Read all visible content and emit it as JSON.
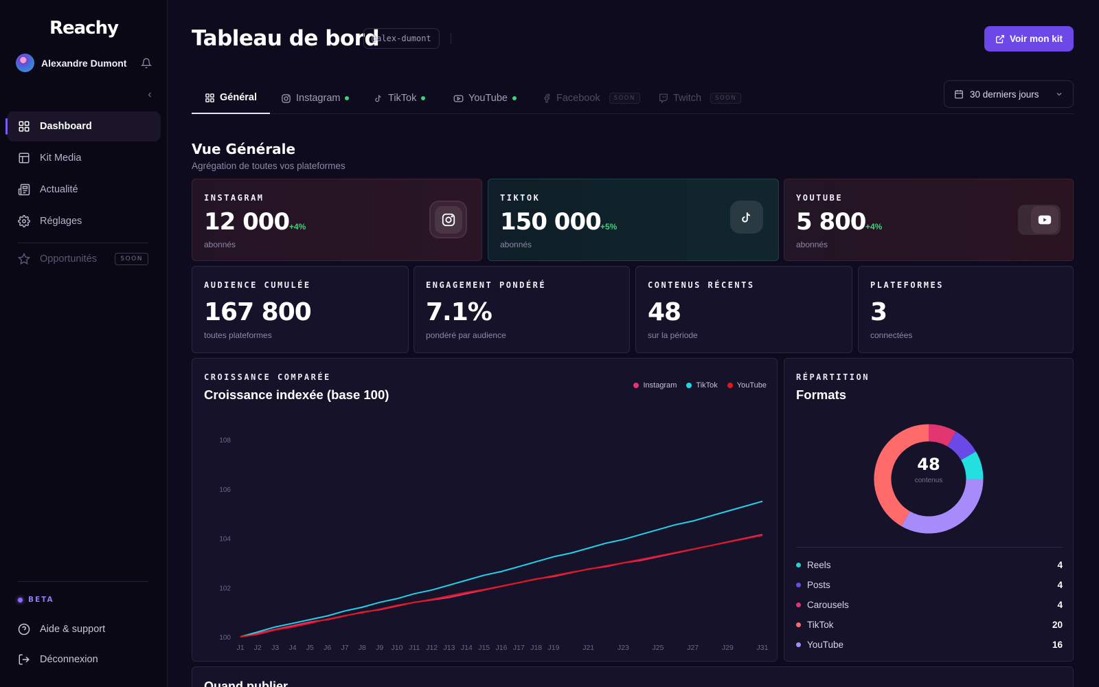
{
  "app": {
    "logo": "Reachy"
  },
  "user": {
    "name": "Alexandre Dumont"
  },
  "sidebar": {
    "items": [
      {
        "label": "Dashboard"
      },
      {
        "label": "Kit Media"
      },
      {
        "label": "Actualité"
      },
      {
        "label": "Réglages"
      }
    ],
    "opportunities": {
      "label": "Opportunités",
      "badge": "SOON"
    },
    "beta_label": "BETA",
    "help_label": "Aide & support",
    "logout_label": "Déconnexion"
  },
  "header": {
    "title": "Tableau de bord",
    "handle": "@alex-dumont",
    "kit_button": "Voir mon kit"
  },
  "tabs": [
    {
      "label": "Général"
    },
    {
      "label": "Instagram"
    },
    {
      "label": "TikTok"
    },
    {
      "label": "YouTube"
    },
    {
      "label": "Facebook",
      "badge": "SOON"
    },
    {
      "label": "Twitch",
      "badge": "SOON"
    }
  ],
  "date_range": {
    "label": "30 derniers jours"
  },
  "overview": {
    "title": "Vue Générale",
    "subtitle": "Agrégation de toutes vos plateformes"
  },
  "platform_cards": {
    "instagram": {
      "label": "INSTAGRAM",
      "value": "12 000",
      "delta": "+4%",
      "sub": "abonnés"
    },
    "tiktok": {
      "label": "TIKTOK",
      "value": "150 000",
      "delta": "+5%",
      "sub": "abonnés"
    },
    "youtube": {
      "label": "YOUTUBE",
      "value": "5 800",
      "delta": "+4%",
      "sub": "abonnés"
    }
  },
  "stat_cards": [
    {
      "label": "AUDIENCE CUMULÉE",
      "value": "167 800",
      "sub": "toutes plateformes"
    },
    {
      "label": "ENGAGEMENT PONDÉRÉ",
      "value": "7.1%",
      "sub": "pondéré par audience"
    },
    {
      "label": "CONTENUS RÉCENTS",
      "value": "48",
      "sub": "sur la période"
    },
    {
      "label": "PLATEFORMES",
      "value": "3",
      "sub": "connectées"
    }
  ],
  "growth": {
    "label": "CROISSANCE COMPARÉE",
    "title": "Croissance indexée (base 100)"
  },
  "formats": {
    "label": "RÉPARTITION",
    "title": "Formats",
    "center_value": "48",
    "center_label": "contenus",
    "rows": [
      {
        "label": "Reels",
        "value": "4",
        "color": "#22d3d8"
      },
      {
        "label": "Posts",
        "value": "4",
        "color": "#6a4ae6"
      },
      {
        "label": "Carousels",
        "value": "4",
        "color": "#e0356f"
      },
      {
        "label": "TikTok",
        "value": "20",
        "color": "#ff6b6b"
      },
      {
        "label": "YouTube",
        "value": "16",
        "color": "#a78bfa"
      }
    ]
  },
  "bottom": {
    "title": "Quand publier"
  },
  "chart_data": {
    "type": "line",
    "title": "Croissance indexée (base 100)",
    "x": [
      "J1",
      "J2",
      "J3",
      "J4",
      "J5",
      "J6",
      "J7",
      "J8",
      "J9",
      "J10",
      "J11",
      "J12",
      "J13",
      "J14",
      "J15",
      "J16",
      "J17",
      "J18",
      "J19",
      "J20",
      "J21",
      "J22",
      "J23",
      "J24",
      "J25",
      "J26",
      "J27",
      "J28",
      "J29",
      "J30",
      "J31"
    ],
    "x_tick_labels": [
      "J1",
      "J2",
      "J3",
      "J4",
      "J5",
      "J6",
      "J7",
      "J8",
      "J9",
      "J10",
      "J11",
      "J12",
      "J13",
      "J14",
      "J15",
      "J16",
      "J17",
      "J18",
      "J19",
      "J21",
      "J23",
      "J25",
      "J27",
      "J29",
      "J31"
    ],
    "ylim": [
      100,
      108
    ],
    "y_ticks": [
      100,
      102,
      104,
      106,
      108
    ],
    "legend_position": "top-right",
    "series": [
      {
        "name": "Instagram",
        "color": "#e0356f",
        "values": [
          100,
          100.15,
          100.3,
          100.45,
          100.6,
          100.7,
          100.85,
          101.0,
          101.1,
          101.25,
          101.4,
          101.5,
          101.6,
          101.75,
          101.9,
          102.05,
          102.2,
          102.35,
          102.45,
          102.6,
          102.75,
          102.85,
          103.0,
          103.1,
          103.25,
          103.4,
          103.55,
          103.7,
          103.85,
          104.0,
          104.15
        ]
      },
      {
        "name": "TikTok",
        "color": "#22d3e8",
        "values": [
          100,
          100.2,
          100.4,
          100.55,
          100.7,
          100.85,
          101.05,
          101.2,
          101.4,
          101.55,
          101.75,
          101.9,
          102.1,
          102.3,
          102.5,
          102.65,
          102.85,
          103.05,
          103.25,
          103.4,
          103.6,
          103.8,
          103.95,
          104.15,
          104.35,
          104.55,
          104.7,
          104.9,
          105.1,
          105.3,
          105.5
        ]
      },
      {
        "name": "YouTube",
        "color": "#e2161f",
        "values": [
          100,
          100.1,
          100.28,
          100.4,
          100.55,
          100.72,
          100.86,
          100.98,
          101.12,
          101.28,
          101.4,
          101.52,
          101.66,
          101.8,
          101.92,
          102.06,
          102.2,
          102.34,
          102.48,
          102.62,
          102.74,
          102.88,
          103.0,
          103.14,
          103.28,
          103.42,
          103.56,
          103.7,
          103.84,
          103.98,
          104.12
        ]
      }
    ]
  },
  "donut_data": {
    "type": "pie",
    "slices": [
      {
        "label": "Carousels",
        "value": 4,
        "color": "#e0356f"
      },
      {
        "label": "Posts",
        "value": 4,
        "color": "#6a4ae6"
      },
      {
        "label": "Reels",
        "value": 4,
        "color": "#22e0e0"
      },
      {
        "label": "YouTube",
        "value": 16,
        "color": "#a78bfa"
      },
      {
        "label": "TikTok",
        "value": 20,
        "color": "#ff6b6b"
      }
    ]
  }
}
